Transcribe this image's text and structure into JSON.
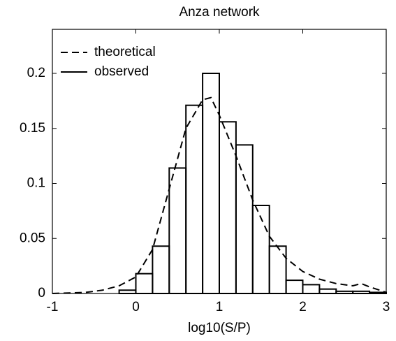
{
  "chart_data": {
    "type": "histogram",
    "title": "Anza network",
    "xlabel": "log10(S/P)",
    "xlim": [
      -1,
      3
    ],
    "ylim": [
      0,
      0.24
    ],
    "xticks": [
      -1,
      0,
      1,
      2,
      3
    ],
    "yticks": [
      0,
      0.05,
      0.1,
      0.15,
      0.2
    ],
    "legend": "upper left",
    "series": [
      {
        "name": "theoretical",
        "kind": "line",
        "dash": true,
        "color": "#000000",
        "x": [
          -1,
          -0.8,
          -0.6,
          -0.4,
          -0.2,
          0,
          0.2,
          0.4,
          0.6,
          0.8,
          0.9,
          1.0,
          1.2,
          1.4,
          1.6,
          1.8,
          2.0,
          2.2,
          2.4,
          2.6,
          2.7,
          2.8,
          3.0
        ],
        "values": [
          0,
          0.0005,
          0.001,
          0.003,
          0.007,
          0.015,
          0.04,
          0.095,
          0.15,
          0.176,
          0.178,
          0.162,
          0.125,
          0.085,
          0.052,
          0.032,
          0.02,
          0.013,
          0.009,
          0.007,
          0.009,
          0.006,
          0.001
        ]
      },
      {
        "name": "observed",
        "kind": "step",
        "dash": false,
        "color": "#000000",
        "bins": [
          -1,
          -0.8,
          -0.6,
          -0.4,
          -0.2,
          0,
          0.2,
          0.4,
          0.6,
          0.8,
          1.0,
          1.2,
          1.4,
          1.6,
          1.8,
          2.0,
          2.2,
          2.4,
          2.6,
          2.8,
          3.0
        ],
        "values": [
          0,
          0,
          0,
          0,
          0.003,
          0.018,
          0.043,
          0.114,
          0.171,
          0.2,
          0.156,
          0.135,
          0.08,
          0.043,
          0.012,
          0.008,
          0.004,
          0.002,
          0.002,
          0.001
        ]
      }
    ]
  }
}
